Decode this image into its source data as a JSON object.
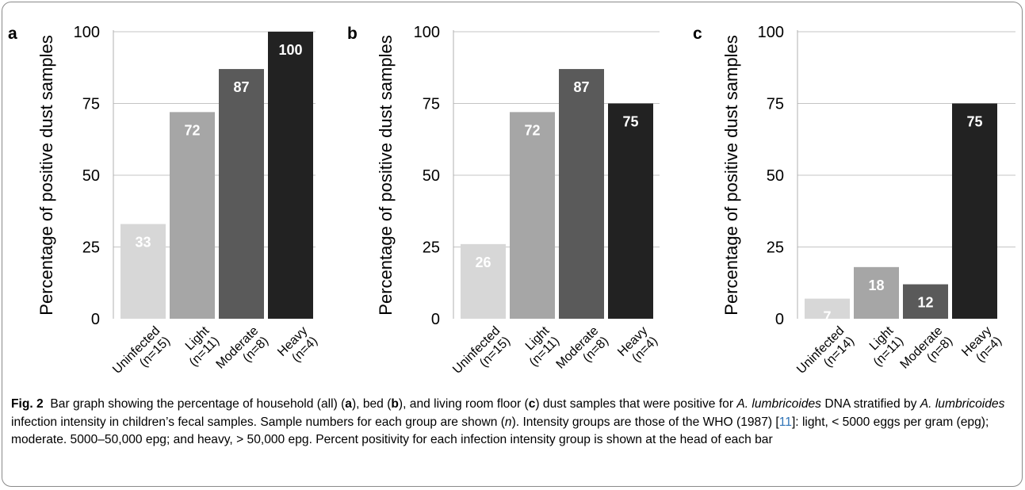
{
  "caption": {
    "label": "Fig. 2",
    "p1": "Bar graph showing the percentage of household (all) (",
    "p2": "), bed (",
    "p3": "), and living room floor (",
    "p4": ") dust samples that were positive for ",
    "p5": "DNA stratified by ",
    "p6": " infection intensity in children’s fecal samples. Sample numbers for each group are shown (",
    "p7": "). Intensity groups are those of the WHO (1987) [",
    "p8": "]: light, < 5000 eggs per gram (epg); moderate. 5000–50,000 epg; and heavy, > 50,000 epg. Percent positivity for each infection intensity group is shown at the head of each bar",
    "panel_a": "a",
    "panel_b": "b",
    "panel_c": "c",
    "species": "A. lumbricoides",
    "n": "n",
    "ref": "11"
  },
  "colors": [
    "#d7d7d7",
    "#a6a6a6",
    "#5a5a5a",
    "#222222"
  ],
  "chart_data": [
    {
      "type": "bar",
      "panel": "a",
      "categories": [
        [
          "Uninfected",
          "(n=15)"
        ],
        [
          "Light",
          "(n=11)"
        ],
        [
          "Moderate",
          "(n=8)"
        ],
        [
          "Heavy",
          "(n=4)"
        ]
      ],
      "values": [
        33,
        72,
        87,
        100
      ],
      "title": "",
      "xlabel": "",
      "ylabel": "Percentage of positive dust samples",
      "ylim": [
        0,
        100
      ],
      "yticks": [
        0,
        25,
        50,
        75,
        100
      ],
      "grid": true
    },
    {
      "type": "bar",
      "panel": "b",
      "categories": [
        [
          "Uninfected",
          "(n=15)"
        ],
        [
          "Light",
          "(n=11)"
        ],
        [
          "Moderate",
          "(n=8)"
        ],
        [
          "Heavy",
          "(n=4)"
        ]
      ],
      "values": [
        26,
        72,
        87,
        75
      ],
      "title": "",
      "xlabel": "",
      "ylabel": "Percentage of positive dust samples",
      "ylim": [
        0,
        100
      ],
      "yticks": [
        0,
        25,
        50,
        75,
        100
      ],
      "grid": true
    },
    {
      "type": "bar",
      "panel": "c",
      "categories": [
        [
          "Uninfected",
          "(n=14)"
        ],
        [
          "Light",
          "(n=11)"
        ],
        [
          "Moderate",
          "(n=8)"
        ],
        [
          "Heavy",
          "(n=4)"
        ]
      ],
      "values": [
        7,
        18,
        12,
        75
      ],
      "title": "",
      "xlabel": "",
      "ylabel": "Percentage of positive dust samples",
      "ylim": [
        0,
        100
      ],
      "yticks": [
        0,
        25,
        50,
        75,
        100
      ],
      "grid": true
    }
  ]
}
